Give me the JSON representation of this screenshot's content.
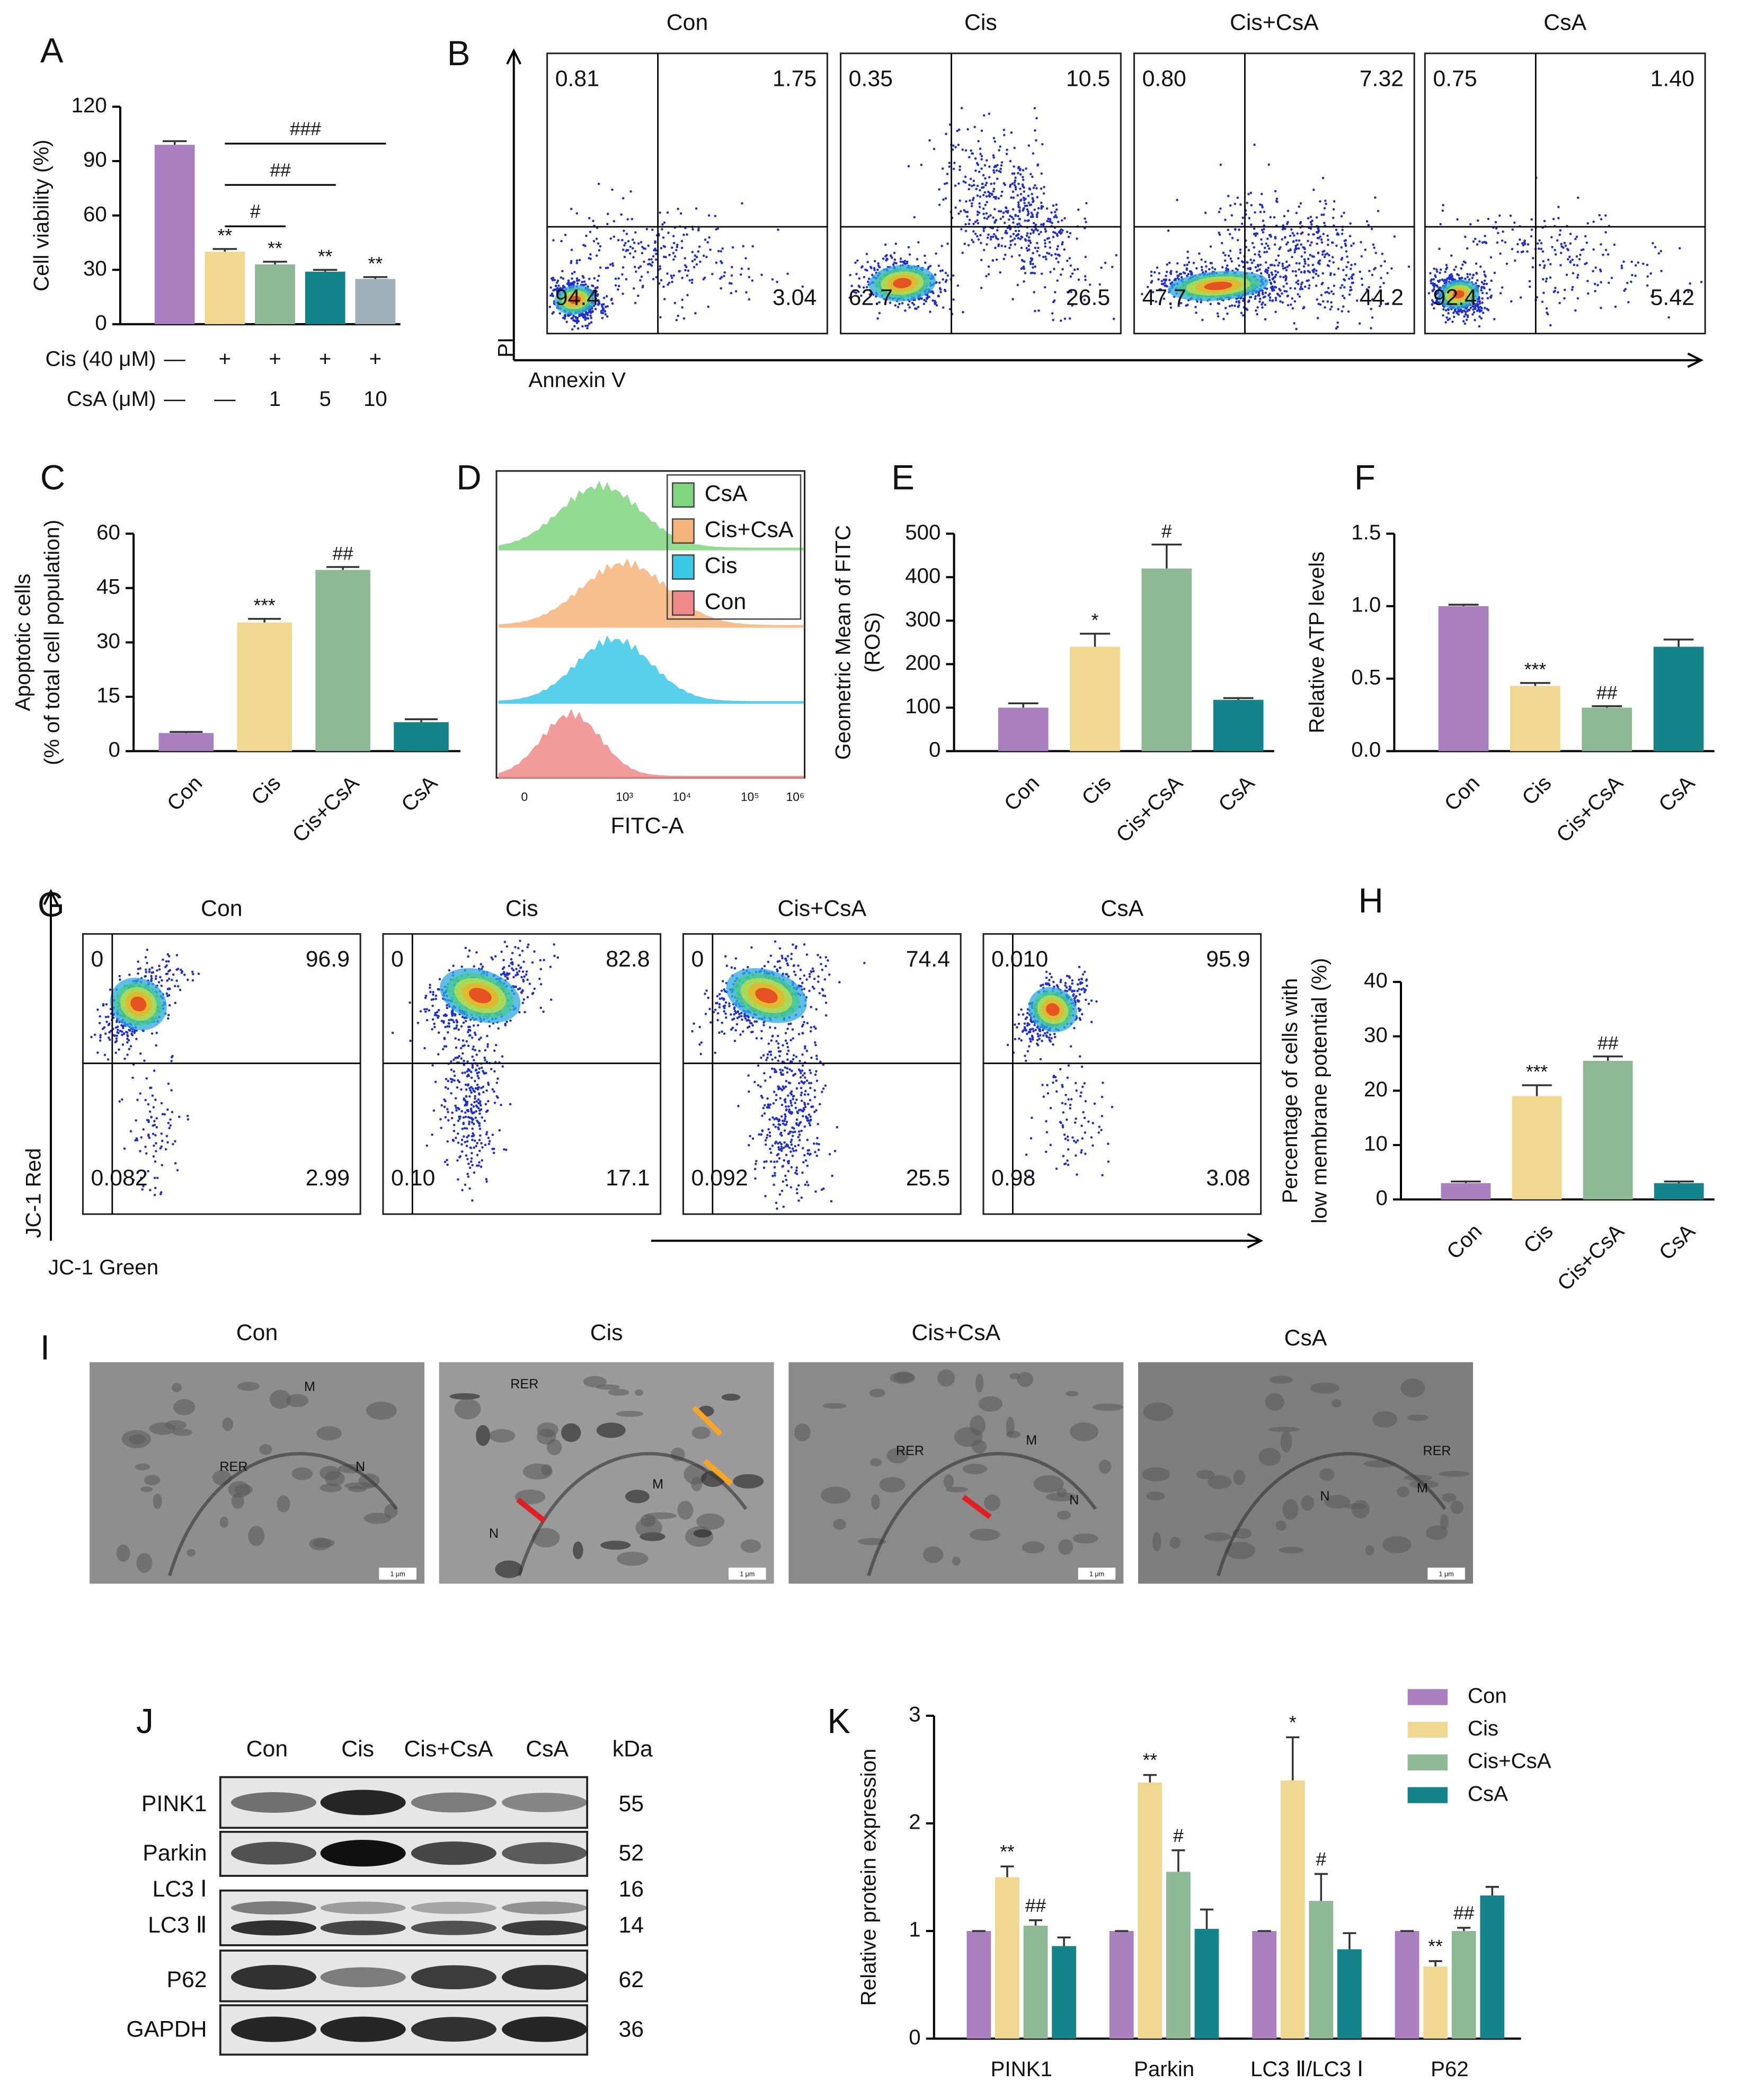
{
  "panel_labels": [
    "A",
    "B",
    "C",
    "D",
    "E",
    "F",
    "G",
    "H",
    "I",
    "J",
    "K"
  ],
  "chart_data": [
    {
      "type": "bar",
      "ylabel": "Cell viability (%)",
      "values": [
        99,
        40,
        33,
        29,
        25
      ],
      "errors": [
        2,
        1.5,
        1.5,
        1,
        1
      ],
      "colors": [
        "#a97fbf",
        "#f0d891",
        "#8fb895",
        "#13858a",
        "#9fb0b8"
      ],
      "ylim": [
        0,
        120
      ],
      "yticks": [
        0,
        30,
        60,
        90,
        120
      ],
      "marks": [
        null,
        "**",
        "**",
        "**",
        "**"
      ],
      "brackets": [
        {
          "from": 1,
          "to": 2,
          "text": "#"
        },
        {
          "from": 1,
          "to": 3,
          "text": "##"
        },
        {
          "from": 1,
          "to": 4,
          "text": "###"
        }
      ],
      "treatments": [
        {
          "name": "Cis (40 μM)",
          "values": [
            "—",
            "+",
            "+",
            "+",
            "+"
          ]
        },
        {
          "name": "CsA (μM)",
          "values": [
            "—",
            "—",
            "1",
            "5",
            "10"
          ]
        }
      ]
    },
    {
      "type": "bar",
      "ylabel": [
        "Apoptotic cells",
        "(% of total cell population)"
      ],
      "categories": [
        "Con",
        "Cis",
        "Cis+CsA",
        "CsA"
      ],
      "values": [
        5,
        35.5,
        50,
        8
      ],
      "errors": [
        0.3,
        1,
        0.8,
        0.8
      ],
      "colors": [
        "#a97fbf",
        "#f0d891",
        "#8fb895",
        "#13858a"
      ],
      "ylim": [
        0,
        60
      ],
      "yticks": [
        0,
        15,
        30,
        45,
        60
      ],
      "marks": [
        null,
        "***",
        "##",
        null
      ]
    },
    {
      "type": "bar",
      "ylabel": [
        "Geometric Mean of FITC",
        "(ROS)"
      ],
      "categories": [
        "Con",
        "Cis",
        "Cis+CsA",
        "CsA"
      ],
      "values": [
        100,
        240,
        420,
        118
      ],
      "errors": [
        10,
        30,
        55,
        4
      ],
      "colors": [
        "#a97fbf",
        "#f0d891",
        "#8fb895",
        "#13858a"
      ],
      "ylim": [
        0,
        500
      ],
      "yticks": [
        0,
        100,
        200,
        300,
        400,
        500
      ],
      "marks": [
        null,
        "*",
        "#",
        null
      ]
    },
    {
      "type": "bar",
      "ylabel": "Relative ATP levels",
      "categories": [
        "Con",
        "Cis",
        "Cis+CsA",
        "CsA"
      ],
      "values": [
        1.0,
        0.45,
        0.3,
        0.72
      ],
      "errors": [
        0.01,
        0.02,
        0.01,
        0.05
      ],
      "colors": [
        "#a97fbf",
        "#f0d891",
        "#8fb895",
        "#13858a"
      ],
      "ylim": [
        0,
        1.5
      ],
      "yticks": [
        {
          "value": 0,
          "label": "0.0"
        },
        {
          "value": 0.5,
          "label": "0.5"
        },
        {
          "value": 1,
          "label": "1.0"
        },
        {
          "value": 1.5,
          "label": "1.5"
        }
      ],
      "marks": [
        null,
        "***",
        "##",
        null
      ]
    },
    {
      "type": "bar",
      "ylabel": [
        "Percentage of cells with",
        "low membrane potential (%)"
      ],
      "categories": [
        "Con",
        "Cis",
        "Cis+CsA",
        "CsA"
      ],
      "values": [
        3,
        19,
        25.5,
        3
      ],
      "errors": [
        0.3,
        2,
        0.8,
        0.3
      ],
      "colors": [
        "#a97fbf",
        "#f0d891",
        "#8fb895",
        "#13858a"
      ],
      "ylim": [
        0,
        40
      ],
      "yticks": [
        0,
        10,
        20,
        30,
        40
      ],
      "marks": [
        null,
        "***",
        "##",
        null
      ]
    },
    {
      "type": "bar",
      "ylabel": "Relative protein expression",
      "categories": [
        "PINK1",
        "Parkin",
        "LC3 Ⅱ/LC3 Ⅰ",
        "P62"
      ],
      "series": [
        {
          "name": "Con",
          "color": "#a97fbf",
          "values": [
            1,
            1,
            1,
            1
          ],
          "errors": [
            0,
            0,
            0,
            0
          ]
        },
        {
          "name": "Cis",
          "color": "#f0d891",
          "values": [
            1.5,
            2.38,
            2.4,
            0.67
          ],
          "errors": [
            0.1,
            0.07,
            0.4,
            0.05
          ],
          "marks": [
            "**",
            "**",
            "*",
            "**"
          ]
        },
        {
          "name": "Cis+CsA",
          "color": "#8fb895",
          "values": [
            1.05,
            1.55,
            1.28,
            1.0
          ],
          "errors": [
            0.05,
            0.2,
            0.25,
            0.03
          ],
          "marks": [
            "##",
            "#",
            "#",
            "##"
          ]
        },
        {
          "name": "CsA",
          "color": "#13858a",
          "values": [
            0.86,
            1.02,
            0.83,
            1.33
          ],
          "errors": [
            0.08,
            0.18,
            0.15,
            0.08
          ]
        }
      ],
      "ylim": [
        0,
        3
      ],
      "yticks": [
        0,
        1,
        2,
        3
      ]
    }
  ],
  "flow_B": {
    "xlabel": "Annexin V",
    "ylabel": "PI",
    "panels": [
      {
        "title": "Con",
        "quadrants": [
          "0.81",
          "1.75",
          "94.4",
          "3.04"
        ]
      },
      {
        "title": "Cis",
        "quadrants": [
          "0.35",
          "10.5",
          "62.7",
          "26.5"
        ]
      },
      {
        "title": "Cis+CsA",
        "quadrants": [
          "0.80",
          "7.32",
          "47.7",
          "44.2"
        ]
      },
      {
        "title": "CsA",
        "quadrants": [
          "0.75",
          "1.40",
          "92.4",
          "5.42"
        ]
      }
    ]
  },
  "histogram_D": {
    "xlabel": "FITC-A",
    "xticks": [
      "0",
      "10³",
      "10⁴",
      "10⁵",
      "10⁶"
    ],
    "legend": [
      {
        "name": "CsA",
        "color": "#7fd67f"
      },
      {
        "name": "Cis+CsA",
        "color": "#f5b57a"
      },
      {
        "name": "Cis",
        "color": "#3cc8e8"
      },
      {
        "name": "Con",
        "color": "#f08a8a"
      }
    ]
  },
  "flow_G": {
    "xlabel": "JC-1 Green",
    "ylabel": "JC-1 Red",
    "panels": [
      {
        "title": "Con",
        "quadrants": [
          "0",
          "96.9",
          "0.082",
          "2.99"
        ]
      },
      {
        "title": "Cis",
        "quadrants": [
          "0",
          "82.8",
          "0.10",
          "17.1"
        ]
      },
      {
        "title": "Cis+CsA",
        "quadrants": [
          "0",
          "74.4",
          "0.092",
          "25.5"
        ]
      },
      {
        "title": "CsA",
        "quadrants": [
          "0.010",
          "95.9",
          "0.98",
          "3.08"
        ]
      }
    ]
  },
  "tem_I": {
    "scale": "1 μm",
    "images": [
      {
        "title": "Con",
        "labels": [
          "M",
          "RER",
          "N"
        ]
      },
      {
        "title": "Cis",
        "labels": [
          "RER",
          "M",
          "N"
        ]
      },
      {
        "title": "Cis+CsA",
        "labels": [
          "RER",
          "M",
          "N"
        ]
      },
      {
        "title": "CsA",
        "labels": [
          "RER",
          "M",
          "N"
        ]
      }
    ]
  },
  "blot_J": {
    "lanes": [
      "Con",
      "Cis",
      "Cis+CsA",
      "CsA"
    ],
    "unit": "kDa",
    "rows": [
      {
        "labels": [
          "PINK1"
        ],
        "kda": [
          "55"
        ]
      },
      {
        "labels": [
          "Parkin"
        ],
        "kda": [
          "52"
        ]
      },
      {
        "labels": [
          "LC3 Ⅰ",
          "LC3 Ⅱ"
        ],
        "kda": [
          "16",
          "14"
        ]
      },
      {
        "labels": [
          "P62"
        ],
        "kda": [
          "62"
        ]
      },
      {
        "labels": [
          "GAPDH"
        ],
        "kda": [
          "36"
        ]
      }
    ]
  }
}
